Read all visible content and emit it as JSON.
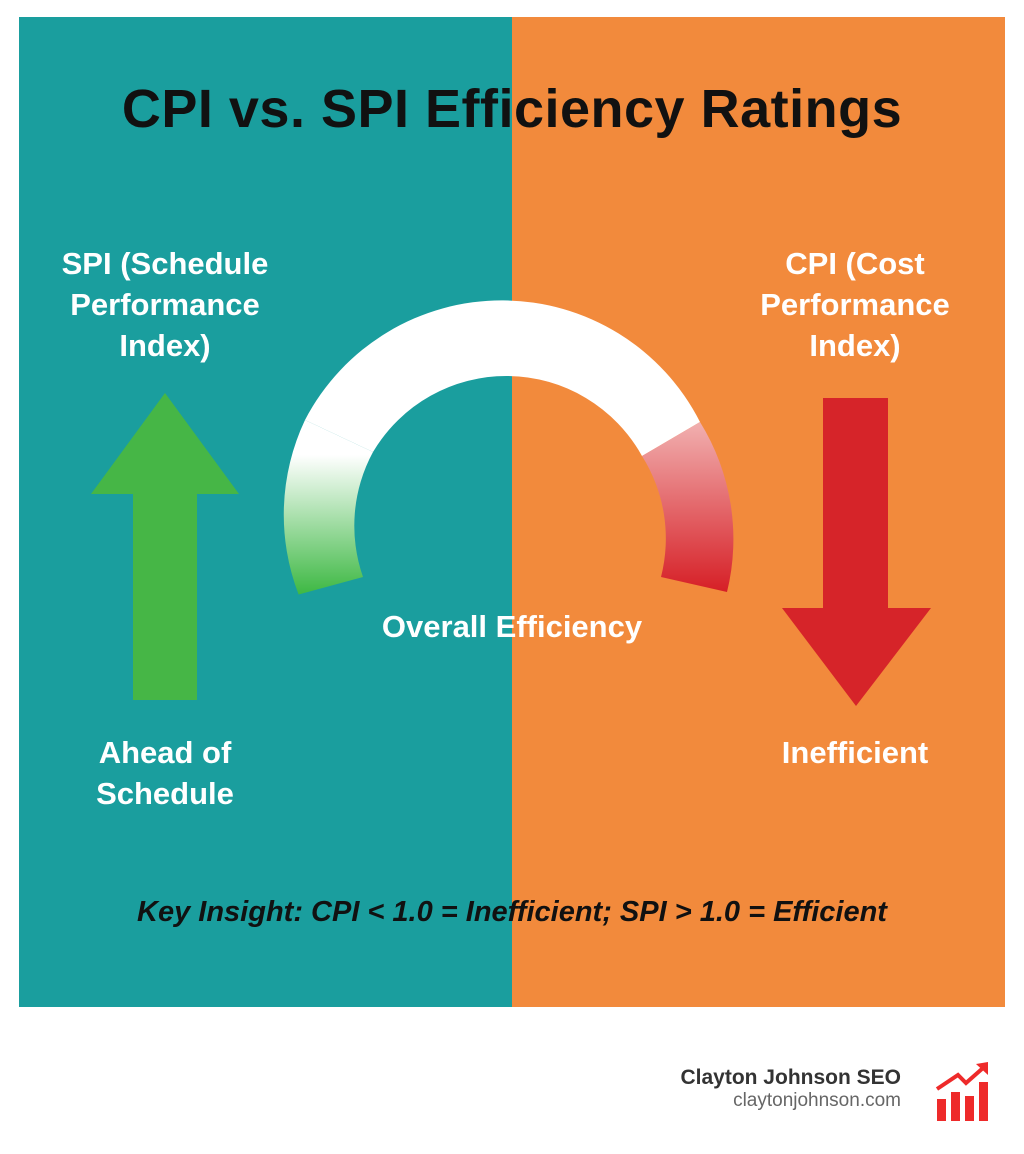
{
  "title": "CPI vs. SPI Efficiency Ratings",
  "spi": {
    "label": "SPI (Schedule Performance Index)",
    "line1": "SPI (Schedule",
    "line2": "Performance",
    "line3": "Index)",
    "status_line1": "Ahead of",
    "status_line2": "Schedule",
    "arrow": "arrow-up-icon"
  },
  "cpi": {
    "label": "CPI (Cost Performance Index)",
    "line1": "CPI (Cost",
    "line2": "Performance",
    "line3": "Index)",
    "status": "Inefficient",
    "arrow": "arrow-down-icon"
  },
  "gauge": {
    "label": "Overall Efficiency"
  },
  "insight": "Key Insight: CPI < 1.0 = Inefficient; SPI > 1.0 = Efficient",
  "brand": {
    "name": "Clayton Johnson SEO",
    "url": "claytonjohnson.com",
    "logo": "bar-chart-growth-icon"
  },
  "colors": {
    "teal": "#1a9e9e",
    "orange": "#f28a3c",
    "green": "#3db843",
    "red": "#d61f26"
  }
}
